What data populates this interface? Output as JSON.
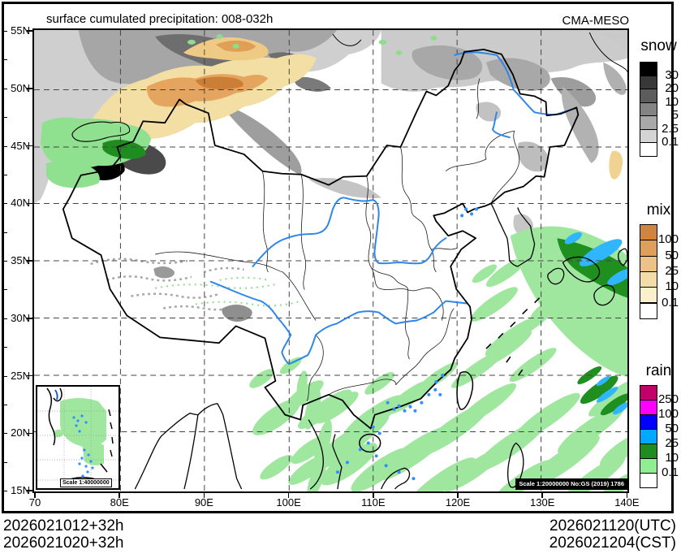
{
  "header": {
    "title": "surface cumulated precipitation: 008-032h",
    "model": "CMA-MESO"
  },
  "axes": {
    "lat": [
      "55N",
      "50N",
      "45N",
      "40N",
      "35N",
      "30N",
      "25N",
      "20N",
      "15N"
    ],
    "lon": [
      "70",
      "80E",
      "90E",
      "100E",
      "110E",
      "120E",
      "130E",
      "140E"
    ]
  },
  "legends": [
    {
      "id": "snow",
      "title": "snow",
      "ticks": [
        "30",
        "20",
        "10",
        "5",
        "2.5",
        "0.1"
      ],
      "colors": [
        "#000000",
        "#383838",
        "#5c5c5c",
        "#848484",
        "#a8a8a8",
        "#d4d4d4",
        "#ffffff"
      ]
    },
    {
      "id": "mix",
      "title": "mix",
      "ticks": [
        "100",
        "50",
        "25",
        "10",
        "0.1"
      ],
      "colors": [
        "#cd853f",
        "#dd9f5b",
        "#ecc288",
        "#f3dca6",
        "#faf0cb",
        "#ffffff"
      ]
    },
    {
      "id": "rain",
      "title": "rain",
      "ticks": [
        "250",
        "100",
        "50",
        "25",
        "10",
        "0.1"
      ],
      "colors": [
        "#c2006a",
        "#ff00ff",
        "#0000ff",
        "#00a8ff",
        "#1e8c1e",
        "#90ee90",
        "#ffffff"
      ]
    }
  ],
  "map": {
    "inset_scale_label": "Scale 1:40000000",
    "scale_note": "Scale 1:20000000 No:GS (2019) 1786"
  },
  "footer": {
    "left_line1": "2026021012+32h",
    "left_line2": "2026021020+32h",
    "right_line1": "2026021120(UTC)",
    "right_line2": "2026021204(CST)"
  }
}
